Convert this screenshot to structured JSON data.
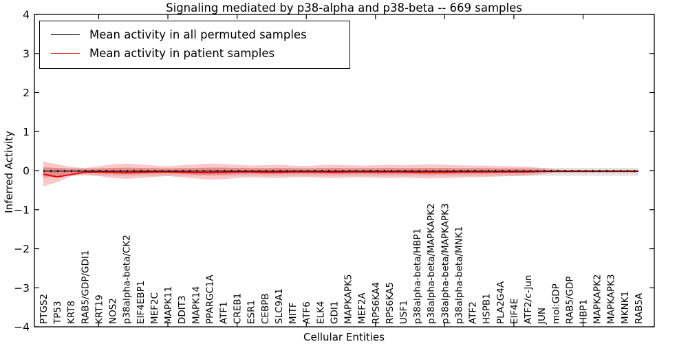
{
  "chart_data": {
    "type": "line",
    "title": "Signaling mediated by p38-alpha and p38-beta -- 669 samples",
    "xlabel": "Cellular Entities",
    "ylabel": "Inferred Activity",
    "ylim": [
      -4,
      4
    ],
    "yticks": [
      -4,
      -3,
      -2,
      -1,
      0,
      1,
      2,
      3,
      4
    ],
    "xtick_every": 5,
    "grid": false,
    "legend": {
      "position": "upper-left",
      "entries": [
        {
          "label": "Mean activity in all permuted samples",
          "color": "#000000"
        },
        {
          "label": "Mean activity in patient samples",
          "color": "#ff0000"
        }
      ]
    },
    "categories": [
      "PTGS2",
      "TP53",
      "KRT8",
      "RAB5/GDP/GDI1",
      "KRT19",
      "NOS2",
      "p38alpha-beta/CK2",
      "EIF4EBP1",
      "MEF2C",
      "MAPK11",
      "DDIT3",
      "MAPK14",
      "PPARGC1A",
      "ATF1",
      "CREB1",
      "ESR1",
      "CEBPB",
      "SLC9A1",
      "MITF",
      "ATF6",
      "ELK4",
      "GDI1",
      "MAPKAPK5",
      "MEF2A",
      "RPS6KA4",
      "RPS6KA5",
      "USF1",
      "p38alpha-beta/HBP1",
      "p38alpha-beta/MAPKAPK2",
      "p38alpha-beta/MAPKAPK3",
      "p38alpha-beta/MNK1",
      "ATF2",
      "HSPB1",
      "PLA2G4A",
      "EIF4E",
      "ATF2/c-Jun",
      "JUN",
      "mol:GDP",
      "RAB5/GDP",
      "HBP1",
      "MAPKAPK2",
      "MAPKAPK3",
      "MKNK1",
      "RAB5A"
    ],
    "series": [
      {
        "name": "permuted_mean",
        "color": "#000000",
        "values": [
          -0.01,
          -0.01,
          -0.01,
          -0.01,
          -0.01,
          -0.01,
          -0.01,
          -0.01,
          -0.01,
          -0.01,
          -0.01,
          -0.01,
          -0.01,
          -0.01,
          -0.01,
          -0.01,
          -0.01,
          -0.01,
          -0.01,
          -0.01,
          -0.01,
          -0.01,
          -0.01,
          -0.01,
          -0.01,
          -0.01,
          -0.01,
          -0.01,
          -0.01,
          -0.01,
          -0.01,
          -0.01,
          -0.01,
          -0.01,
          -0.01,
          -0.01,
          -0.01,
          -0.01,
          -0.01,
          -0.01,
          -0.01,
          -0.01,
          -0.01,
          -0.01
        ]
      },
      {
        "name": "patient_mean",
        "color": "#f40000",
        "values": [
          -0.09,
          -0.16,
          -0.1,
          -0.04,
          -0.03,
          -0.04,
          -0.05,
          -0.04,
          -0.03,
          -0.03,
          -0.04,
          -0.05,
          -0.05,
          -0.04,
          -0.03,
          -0.03,
          -0.04,
          -0.04,
          -0.03,
          -0.03,
          -0.03,
          -0.04,
          -0.03,
          -0.03,
          -0.03,
          -0.03,
          -0.03,
          -0.04,
          -0.04,
          -0.04,
          -0.03,
          -0.03,
          -0.03,
          -0.03,
          -0.03,
          -0.03,
          -0.02,
          -0.02,
          -0.02,
          -0.02,
          -0.02,
          -0.02,
          -0.02,
          -0.02
        ]
      }
    ],
    "bands": [
      {
        "name": "permuted_std",
        "color": "rgba(130,130,130,0.22)",
        "upper": 0.07,
        "lower": -0.13
      },
      {
        "name": "patient_std_outer",
        "color": "rgba(235,50,50,0.27)",
        "upper": [
          0.23,
          0.16,
          0.09,
          0.07,
          0.11,
          0.16,
          0.18,
          0.16,
          0.13,
          0.11,
          0.14,
          0.16,
          0.18,
          0.17,
          0.15,
          0.13,
          0.14,
          0.15,
          0.13,
          0.12,
          0.14,
          0.15,
          0.14,
          0.13,
          0.14,
          0.15,
          0.14,
          0.15,
          0.16,
          0.15,
          0.14,
          0.13,
          0.13,
          0.12,
          0.11,
          0.1,
          0.07,
          0.03,
          0.02,
          0.02,
          0.02,
          0.02,
          0.02,
          0.02
        ],
        "lower": [
          -0.4,
          -0.3,
          -0.14,
          -0.1,
          -0.14,
          -0.19,
          -0.21,
          -0.19,
          -0.16,
          -0.14,
          -0.17,
          -0.2,
          -0.23,
          -0.22,
          -0.19,
          -0.17,
          -0.18,
          -0.19,
          -0.17,
          -0.16,
          -0.18,
          -0.19,
          -0.18,
          -0.17,
          -0.18,
          -0.19,
          -0.18,
          -0.19,
          -0.2,
          -0.19,
          -0.18,
          -0.17,
          -0.16,
          -0.15,
          -0.14,
          -0.13,
          -0.09,
          -0.05,
          -0.04,
          -0.04,
          -0.04,
          -0.04,
          -0.04,
          -0.04
        ]
      },
      {
        "name": "patient_std_inner",
        "color": "rgba(225,40,40,0.28)",
        "upper": [
          0.09,
          0.07,
          0.04,
          0.03,
          0.05,
          0.07,
          0.08,
          0.07,
          0.06,
          0.05,
          0.06,
          0.07,
          0.08,
          0.08,
          0.07,
          0.06,
          0.06,
          0.07,
          0.06,
          0.05,
          0.06,
          0.07,
          0.06,
          0.06,
          0.06,
          0.07,
          0.06,
          0.07,
          0.07,
          0.07,
          0.06,
          0.06,
          0.06,
          0.05,
          0.05,
          0.04,
          0.03,
          0.01,
          0.01,
          0.01,
          0.01,
          0.01,
          0.01,
          0.01
        ],
        "lower": [
          -0.19,
          -0.15,
          -0.07,
          -0.05,
          -0.07,
          -0.09,
          -0.1,
          -0.09,
          -0.08,
          -0.07,
          -0.08,
          -0.1,
          -0.11,
          -0.11,
          -0.09,
          -0.08,
          -0.09,
          -0.09,
          -0.08,
          -0.08,
          -0.09,
          -0.09,
          -0.09,
          -0.08,
          -0.09,
          -0.09,
          -0.09,
          -0.09,
          -0.1,
          -0.09,
          -0.09,
          -0.08,
          -0.08,
          -0.07,
          -0.07,
          -0.06,
          -0.04,
          -0.03,
          -0.02,
          -0.02,
          -0.02,
          -0.02,
          -0.02,
          -0.02
        ]
      }
    ]
  }
}
